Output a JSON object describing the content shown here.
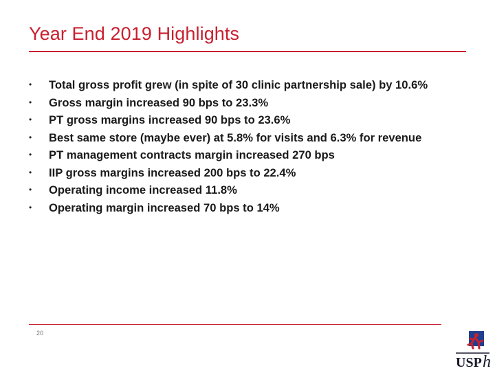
{
  "slide": {
    "title": "Year End 2019 Highlights",
    "page_number": "20",
    "accent_color": "#c8202f"
  },
  "bullets": [
    "Total gross profit grew (in spite of 30 clinic partnership sale) by 10.6%",
    "Gross margin increased 90 bps to 23.3%",
    "PT gross margins increased 90  bps to 23.6%",
    "Best same store (maybe ever) at 5.8% for visits and 6.3% for revenue",
    "PT management contracts margin increased 270 bps",
    "IIP gross margins increased 200 bps to 22.4%",
    "Operating income increased 11.8%",
    "Operating margin increased 70 bps to 14%"
  ],
  "bullet_glyph": "•",
  "logo": {
    "text": "USPh",
    "icon": "uspt-runner-logo-icon",
    "colors": {
      "blue": "#1f3f8f",
      "red": "#c8202f",
      "dark": "#1a1a2e"
    }
  }
}
